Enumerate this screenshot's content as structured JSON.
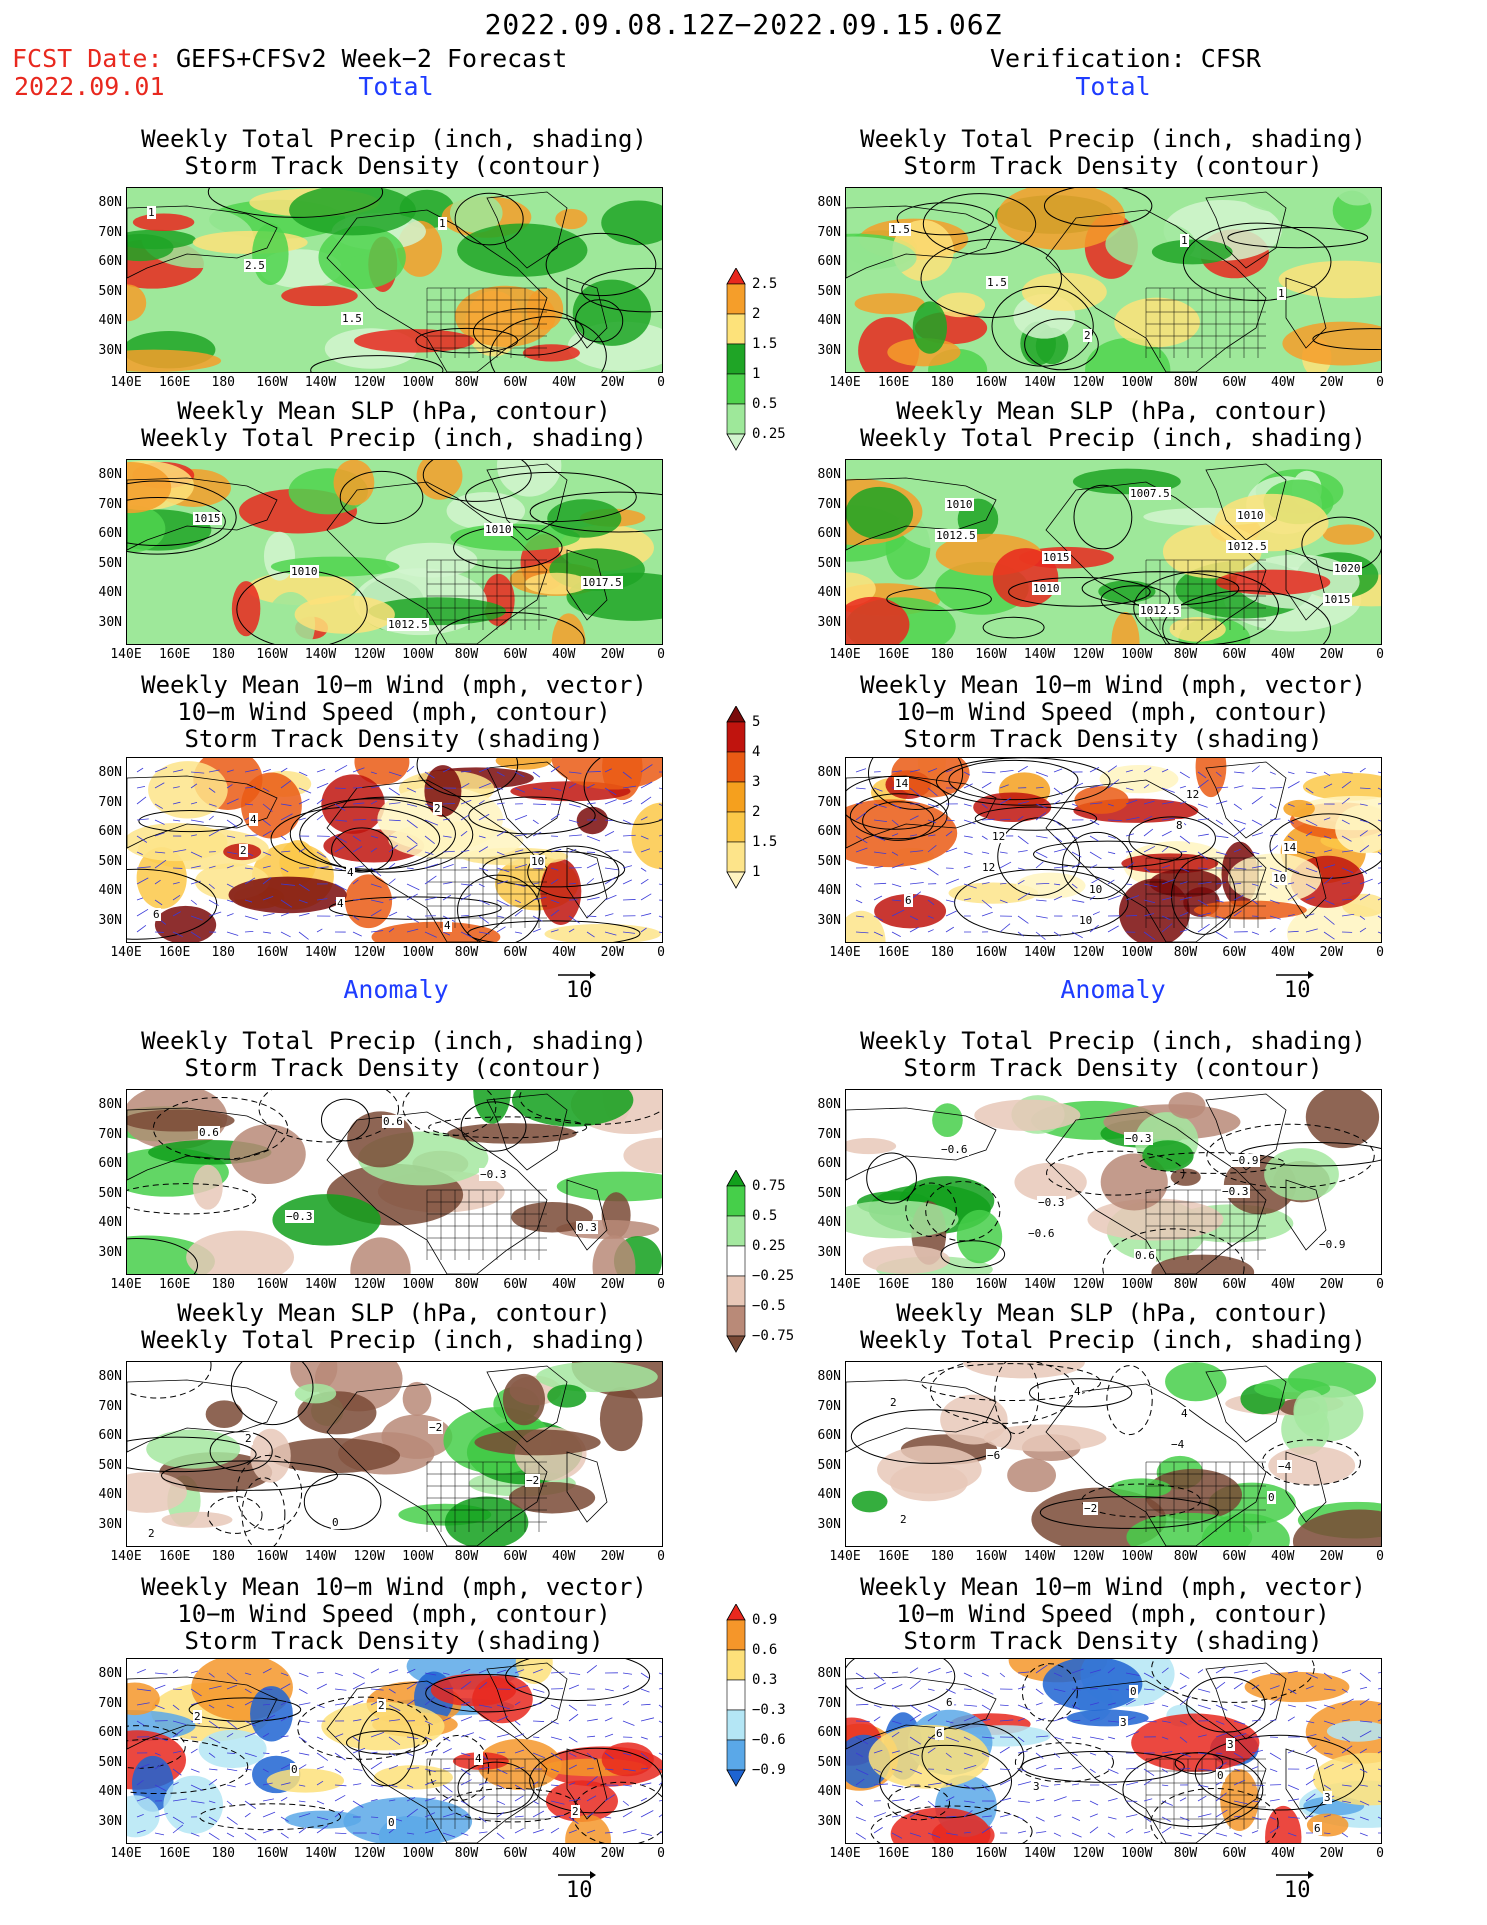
{
  "header": {
    "title": "2022.09.08.12Z−2022.09.15.06Z",
    "fcst_label": "FCST Date:",
    "fcst_date": "2022.09.01",
    "model": "GEFS+CFSv2 Week−2 Forecast",
    "verification": "Verification: CFSR"
  },
  "sections": {
    "total": "Total",
    "anomaly": "Anomaly"
  },
  "titles": {
    "precip_storm": "Weekly Total Precip (inch, shading)\nStorm Track Density (contour)",
    "slp_precip": "Weekly Mean SLP (hPa, contour)\nWeekly Total Precip (inch, shading)",
    "wind_storm": "Weekly Mean 10−m Wind (mph, vector)\n10−m Wind Speed (mph, contour)\nStorm Track Density (shading)"
  },
  "axes": {
    "lat": [
      "80N",
      "70N",
      "60N",
      "50N",
      "40N",
      "30N"
    ],
    "lon": [
      "140E",
      "160E",
      "180",
      "160W",
      "140W",
      "120W",
      "100W",
      "80W",
      "60W",
      "40W",
      "20W",
      "0"
    ]
  },
  "vector_ref": {
    "label": "10"
  },
  "colorbars": {
    "precip": {
      "labels": [
        "2.5",
        "2",
        "1.5",
        "1",
        "0.5",
        "0.25"
      ],
      "colors": [
        "#e8281e",
        "#f59e2a",
        "#fde27a",
        "#1fa526",
        "#4fd34e",
        "#9ee89a",
        "#d2f5cf"
      ]
    },
    "storm": {
      "labels": [
        "5",
        "4",
        "3",
        "2",
        "1.5",
        "1"
      ],
      "colors": [
        "#7a0a0a",
        "#c0140e",
        "#ea5a14",
        "#f5a01e",
        "#fbc848",
        "#fde48a",
        "#fff4c0"
      ]
    },
    "precip_anom": {
      "labels": [
        "0.75",
        "0.5",
        "0.25",
        "−0.25",
        "−0.5",
        "−0.75"
      ],
      "colors": [
        "#12a01c",
        "#46cf4a",
        "#a4e8a0",
        "#ffffff",
        "#e8c8b8",
        "#b98a78",
        "#7a4a36"
      ]
    },
    "storm_anom": {
      "labels": [
        "0.9",
        "0.6",
        "0.3",
        "−0.3",
        "−0.6",
        "−0.9"
      ],
      "colors": [
        "#e8281e",
        "#f5962a",
        "#fde07a",
        "#ffffff",
        "#b4e6f5",
        "#5aa8e8",
        "#1e64d2"
      ]
    }
  },
  "panel_labels": {
    "fc_total_precip": [
      "1",
      "2.5",
      "1.5",
      "1"
    ],
    "ob_total_precip": [
      "1.5",
      "1.5",
      "2",
      "1",
      "1"
    ],
    "fc_total_slp": [
      "1015",
      "1010",
      "1012.5",
      "1010",
      "1017.5"
    ],
    "ob_total_slp": [
      "1012.5",
      "1010",
      "1007.5",
      "1012.5",
      "1015",
      "1010",
      "1015",
      "1012.5",
      "1010",
      "1020"
    ],
    "fc_total_wind": [
      "2",
      "4",
      "2",
      "10",
      "6",
      "4",
      "4",
      "4"
    ],
    "ob_total_wind": [
      "12",
      "10",
      "8",
      "10",
      "14",
      "12",
      "10",
      "12",
      "14",
      "6"
    ],
    "fc_anom_precip": [
      "−0.3",
      "0.6",
      "−0.3",
      "0.3",
      "0.6"
    ],
    "ob_anom_precip": [
      "−0.6",
      "−0.3",
      "−0.3",
      "−0.9",
      "−0.6",
      "−0.3",
      "0.6",
      "−0.9"
    ],
    "fc_anom_slp": [
      "0",
      "−2",
      "−2",
      "2",
      "2"
    ],
    "ob_anom_slp": [
      "4",
      "−4",
      "0",
      "2",
      "−6",
      "−2",
      "4",
      "−4",
      "2"
    ],
    "fc_anom_wind": [
      "2",
      "4",
      "2",
      "2",
      "0",
      "0"
    ],
    "ob_anom_wind": [
      "3",
      "0",
      "6",
      "6",
      "3",
      "0",
      "3",
      "3",
      "6"
    ]
  }
}
